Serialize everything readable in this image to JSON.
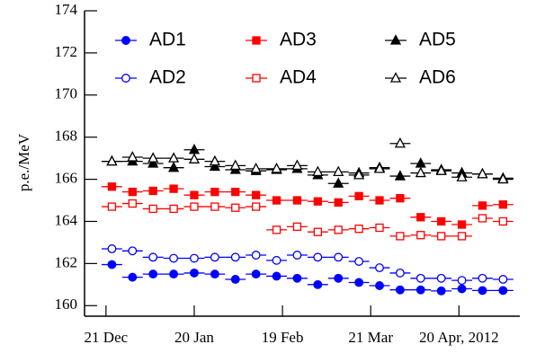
{
  "chart_data": {
    "type": "scatter",
    "y_label": "p.e./MeV",
    "x": [
      2,
      9,
      16,
      23,
      30,
      37,
      44,
      51,
      58,
      65,
      72,
      79,
      86,
      93,
      100,
      107,
      114,
      121,
      128,
      135
    ],
    "xerr": 3.5,
    "xlim": [
      -7.3,
      140.7
    ],
    "xticks": [
      {
        "value": 0,
        "label": "21 Dec"
      },
      {
        "value": 30,
        "label": "20 Jan"
      },
      {
        "value": 60,
        "label": "19 Feb"
      },
      {
        "value": 90,
        "label": "21 Mar"
      },
      {
        "value": 120,
        "label": "20 Apr, 2012"
      }
    ],
    "ylim": [
      159.5,
      174
    ],
    "yticks": [
      160,
      162,
      164,
      166,
      168,
      170,
      172,
      174
    ],
    "series": [
      {
        "name": "AD1",
        "color": "#0000ff",
        "marker": "circle",
        "filled": true,
        "values": [
          161.95,
          161.35,
          161.5,
          161.5,
          161.55,
          161.5,
          161.25,
          161.5,
          161.4,
          161.3,
          161.0,
          161.3,
          161.1,
          160.95,
          160.75,
          160.75,
          160.7,
          160.8,
          160.72,
          160.72
        ]
      },
      {
        "name": "AD2",
        "color": "#0000ff",
        "marker": "circle",
        "filled": false,
        "values": [
          162.7,
          162.6,
          162.3,
          162.25,
          162.25,
          162.3,
          162.3,
          162.4,
          162.15,
          162.4,
          162.3,
          162.3,
          162.1,
          161.8,
          161.55,
          161.3,
          161.3,
          161.2,
          161.3,
          161.25
        ]
      },
      {
        "name": "AD3",
        "color": "#ff0000",
        "marker": "square",
        "filled": true,
        "values": [
          165.65,
          165.4,
          165.45,
          165.55,
          165.25,
          165.4,
          165.4,
          165.25,
          165.0,
          165.0,
          164.95,
          164.9,
          165.2,
          165.0,
          165.1,
          164.2,
          164.0,
          163.85,
          164.75,
          164.8
        ]
      },
      {
        "name": "AD4",
        "color": "#ff0000",
        "marker": "square",
        "filled": false,
        "values": [
          164.7,
          164.85,
          164.6,
          164.6,
          164.7,
          164.7,
          164.65,
          164.7,
          163.6,
          163.75,
          163.5,
          163.6,
          163.65,
          163.7,
          163.3,
          163.35,
          163.3,
          163.3,
          164.15,
          164.0
        ]
      },
      {
        "name": "AD5",
        "color": "#000000",
        "marker": "triangle",
        "filled": true,
        "values": [
          166.85,
          166.85,
          166.75,
          166.55,
          167.4,
          166.6,
          166.45,
          166.4,
          166.45,
          166.5,
          166.2,
          165.8,
          166.3,
          166.55,
          166.15,
          166.75,
          166.45,
          166.3,
          166.25,
          166.05
        ]
      },
      {
        "name": "AD6",
        "color": "#000000",
        "marker": "triangle",
        "filled": false,
        "values": [
          166.85,
          167.05,
          167.0,
          167.0,
          166.95,
          166.85,
          166.65,
          166.5,
          166.5,
          166.65,
          166.35,
          166.35,
          166.2,
          166.5,
          167.7,
          166.3,
          166.4,
          166.1,
          166.25,
          166.0
        ]
      }
    ]
  }
}
